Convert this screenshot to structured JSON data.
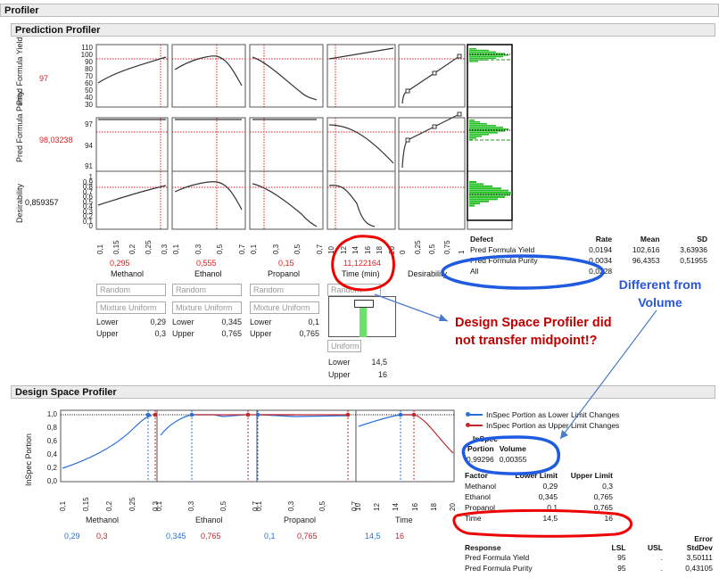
{
  "titles": {
    "profiler": "Profiler",
    "prediction_profiler": "Prediction Profiler",
    "design_space_profiler": "Design Space Profiler"
  },
  "prediction": {
    "responses": [
      {
        "name": "Pred Formula Yield",
        "value": "97",
        "ticks": [
          "110",
          "100",
          "90",
          "80",
          "70",
          "60",
          "50",
          "40",
          "30"
        ]
      },
      {
        "name": "Pred Formula Purity",
        "value": "98,03238",
        "ticks": [
          "97",
          "94",
          "91"
        ]
      },
      {
        "name": "Desirability",
        "value": "0,859357",
        "ticks": [
          "1",
          "0,9",
          "0,8",
          "0,7",
          "0,6",
          "0,5",
          "0,4",
          "0,3",
          "0,2",
          "0,1",
          "0"
        ]
      }
    ],
    "factors": [
      {
        "name": "Methanol",
        "value": "0,295",
        "ticks": [
          "0,1",
          "0,15",
          "0,2",
          "0,25",
          "0,3"
        ],
        "random": "Random",
        "dist": "Mixture Uniform",
        "lower": "0,29",
        "upper": "0,3"
      },
      {
        "name": "Ethanol",
        "value": "0,555",
        "ticks": [
          "0,1",
          "0,3",
          "0,5",
          "0,7"
        ],
        "random": "Random",
        "dist": "Mixture Uniform",
        "lower": "0,345",
        "upper": "0,765"
      },
      {
        "name": "Propanol",
        "value": "0,15",
        "ticks": [
          "0,1",
          "0,3",
          "0,5",
          "0,7"
        ],
        "random": "Random",
        "dist": "Mixture Uniform",
        "lower": "0,1",
        "upper": "0,765"
      },
      {
        "name": "Time (min)",
        "value": "11,122164",
        "ticks": [
          "10",
          "12",
          "14",
          "16",
          "18",
          "20"
        ],
        "random": "Random",
        "dist": "Uniform",
        "lower": "14,5",
        "upper": "16"
      },
      {
        "name": "Desirability",
        "ticks": [
          "0",
          "0,25",
          "0,5",
          "0,75",
          "1"
        ]
      }
    ],
    "labels": {
      "lower": "Lower",
      "upper": "Upper"
    }
  },
  "defect_table": {
    "headers": [
      "Defect",
      "Rate",
      "Mean",
      "SD"
    ],
    "rows": [
      [
        "Pred Formula Yield",
        "0,0194",
        "102,616",
        "3,63936"
      ],
      [
        "Pred Formula Purity",
        "0,0034",
        "96,4353",
        "0,51955"
      ],
      [
        "All",
        "0,0228",
        "",
        ""
      ]
    ]
  },
  "design_space": {
    "y_label": "InSpec Portion",
    "y_ticks": [
      "1,0",
      "0,8",
      "0,6",
      "0,4",
      "0,2",
      "0,0"
    ],
    "factors": [
      {
        "name": "Methanol",
        "ticks": [
          "0,1",
          "0,15",
          "0,2",
          "0,25",
          "0,3"
        ],
        "lower": "0,29",
        "upper": "0,3"
      },
      {
        "name": "Ethanol",
        "ticks": [
          "0,1",
          "0,3",
          "0,5",
          "0,7"
        ],
        "lower": "0,345",
        "upper": "0,765"
      },
      {
        "name": "Propanol",
        "ticks": [
          "0,1",
          "0,3",
          "0,5",
          "0,7"
        ],
        "lower": "0,1",
        "upper": "0,765"
      },
      {
        "name": "Time",
        "ticks": [
          "10",
          "12",
          "14",
          "16",
          "18",
          "20"
        ],
        "lower": "14,5",
        "upper": "16"
      }
    ],
    "legend": [
      {
        "label": "InSpec Portion as Lower Limit Changes",
        "color": "#2a6fd6"
      },
      {
        "label": "InSpec Portion as Upper Limit Changes",
        "color": "#c0282d"
      }
    ],
    "inspec": {
      "title": "InSpec",
      "headers": [
        "Portion",
        "Volume"
      ],
      "values": [
        "0,99296",
        "0,00355"
      ]
    },
    "factor_table": {
      "headers": [
        "Factor",
        "Lower Limit",
        "Upper Limit"
      ],
      "rows": [
        [
          "Methanol",
          "0,29",
          "0,3"
        ],
        [
          "Ethanol",
          "0,345",
          "0,765"
        ],
        [
          "Propanol",
          "0,1",
          "0,765"
        ],
        [
          "Time",
          "14,5",
          "16"
        ]
      ]
    },
    "response_table": {
      "headers": [
        "Response",
        "LSL",
        "USL",
        "Error StdDev"
      ],
      "rows": [
        [
          "Pred Formula Yield",
          "95",
          ".",
          "3,50111"
        ],
        [
          "Pred Formula Purity",
          "95",
          ".",
          "0,43105"
        ]
      ]
    }
  },
  "annotations": {
    "callout_main": "Design Space Profiler did not transfer midpoint!?",
    "callout_diff": "Different from Volume"
  },
  "colors": {
    "red": "#d22",
    "blue": "#2a6fd6",
    "green": "#22c022",
    "annot_red": "#c00000",
    "annot_blue": "#2a56d6"
  }
}
